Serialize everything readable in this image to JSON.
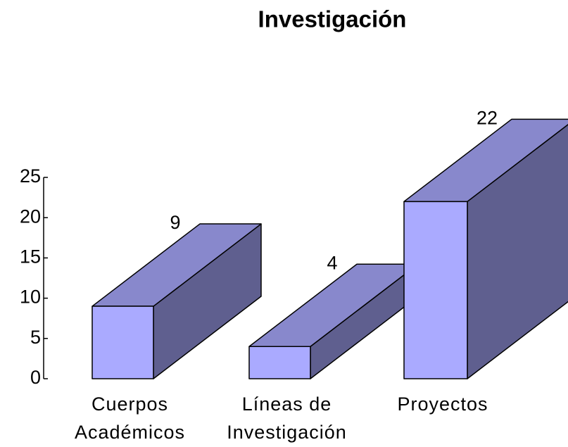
{
  "chart_data": {
    "type": "bar3d",
    "title": "Investigación",
    "categories": [
      [
        "Cuerpos",
        "Académicos"
      ],
      [
        "Líneas de",
        "Investigación"
      ],
      [
        "Proyectos"
      ]
    ],
    "values": [
      9,
      4,
      22
    ],
    "colors": {
      "front": "#aaaaff",
      "top": "#8888cc",
      "side": "#5f5f8f"
    },
    "ylim": [
      0,
      25
    ],
    "yticks": [
      0,
      5,
      10,
      15,
      20,
      25
    ]
  }
}
